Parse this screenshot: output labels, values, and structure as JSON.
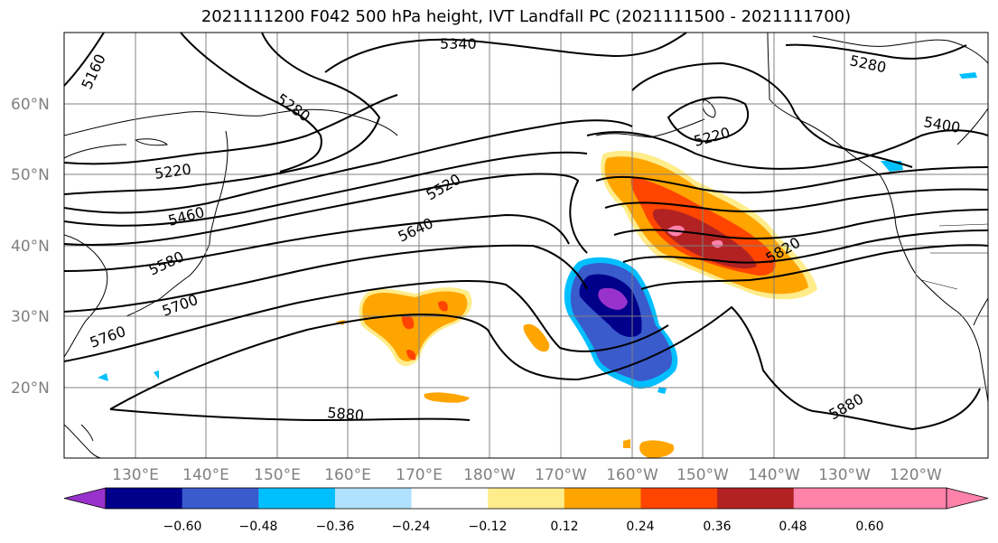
{
  "title": "2021111200 F042 500 hPa height, IVT Landfall PC (2021111500 - 2021111700)",
  "map": {
    "lat_labels": [
      "60°N",
      "50°N",
      "40°N",
      "30°N",
      "20°N"
    ],
    "lon_labels": [
      "130°E",
      "140°E",
      "150°E",
      "160°E",
      "170°E",
      "180°W",
      "170°W",
      "160°W",
      "150°W",
      "140°W",
      "130°W",
      "120°W"
    ],
    "contour_labels": [
      "5160",
      "5280",
      "5340",
      "5220",
      "5460",
      "5580",
      "5700",
      "5760",
      "5520",
      "5640",
      "5220",
      "5280",
      "5400",
      "5820",
      "5880",
      "5880"
    ]
  },
  "colorbar": {
    "ticks": [
      "−0.60",
      "−0.48",
      "−0.36",
      "−0.24",
      "−0.12",
      "0.12",
      "0.24",
      "0.36",
      "0.48",
      "0.60"
    ],
    "colors": [
      "#9932CC",
      "#00008B",
      "#3A5BCC",
      "#00BFFF",
      "#B0E2FF",
      "#FFFFFF",
      "#FFEC8B",
      "#FFA500",
      "#FF4500",
      "#B22222",
      "#FF82AB",
      "#FF82AB"
    ]
  }
}
